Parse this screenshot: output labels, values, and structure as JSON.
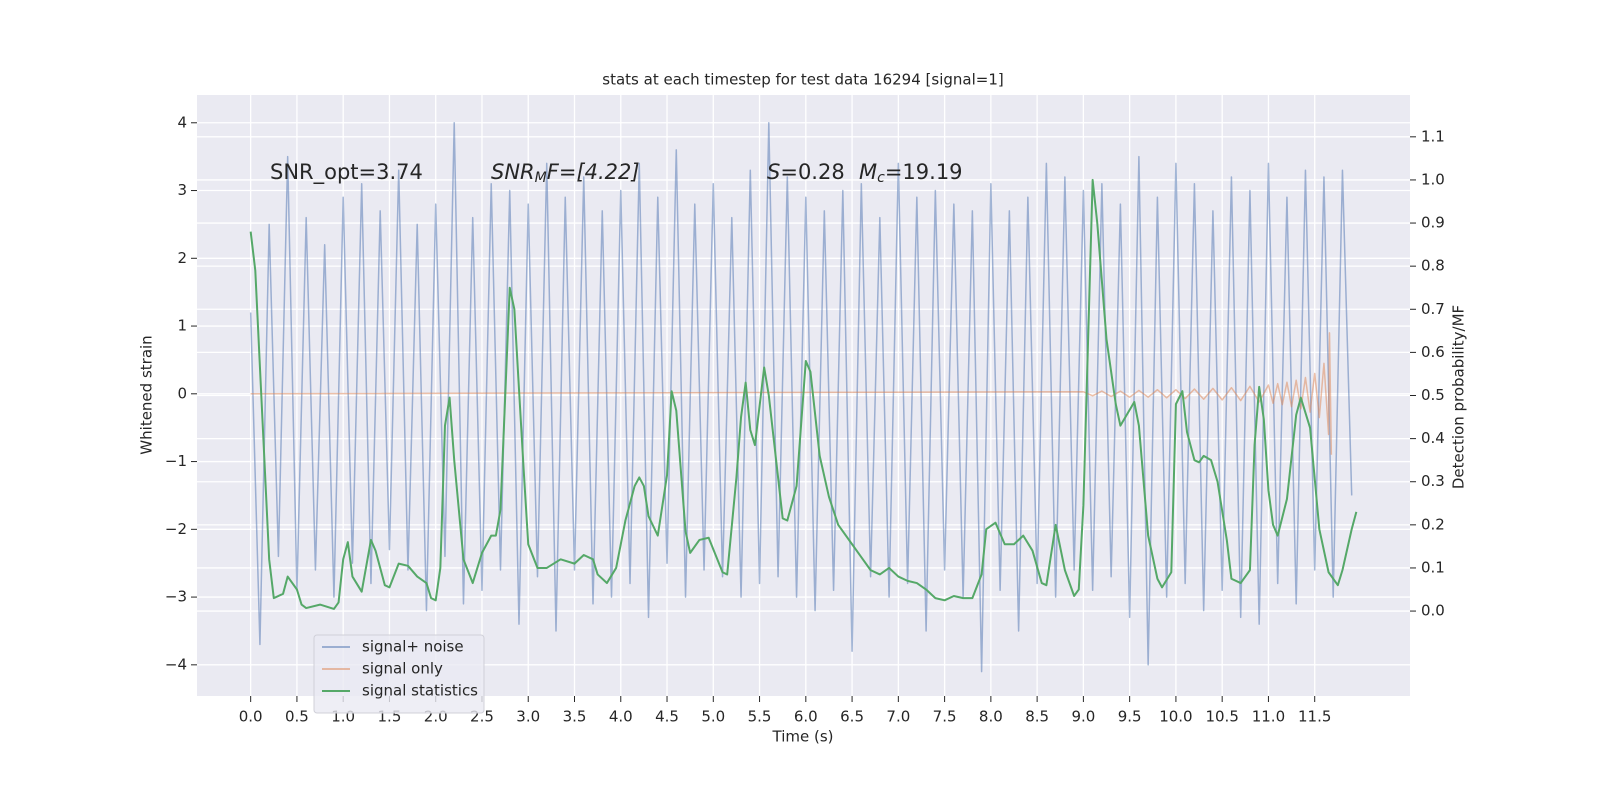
{
  "chart_data": {
    "type": "line",
    "title": "stats at each timestep for test data 16294 [signal=1]",
    "xlabel": "Time (s)",
    "ylabel": "Whitened strain",
    "y2label": "Detection probability/MF",
    "annotations": [
      {
        "base": "SNR_opt=3.74"
      },
      {
        "base": "SNR",
        "sub": "M",
        "rest": "F=[4.22]"
      },
      {
        "base": "S",
        "rest": "=0.28"
      },
      {
        "base": "M",
        "sub": "c",
        "rest": "=19.19"
      }
    ],
    "xlim": [
      -0.58,
      12.53
    ],
    "ylim": [
      -4.46,
      4.41
    ],
    "y2lim": [
      -0.197,
      1.197
    ],
    "xticks": [
      {
        "value": 0,
        "label": "0.0"
      },
      {
        "value": 0.5,
        "label": "0.5"
      },
      {
        "value": 1,
        "label": "1.0"
      },
      {
        "value": 1.5,
        "label": "1.5"
      },
      {
        "value": 2,
        "label": "2.0"
      },
      {
        "value": 2.5,
        "label": "2.5"
      },
      {
        "value": 3,
        "label": "3.0"
      },
      {
        "value": 3.5,
        "label": "3.5"
      },
      {
        "value": 4,
        "label": "4.0"
      },
      {
        "value": 4.5,
        "label": "4.5"
      },
      {
        "value": 5,
        "label": "5.0"
      },
      {
        "value": 5.5,
        "label": "5.5"
      },
      {
        "value": 6,
        "label": "6.0"
      },
      {
        "value": 6.5,
        "label": "6.5"
      },
      {
        "value": 7,
        "label": "7.0"
      },
      {
        "value": 7.5,
        "label": "7.5"
      },
      {
        "value": 8,
        "label": "8.0"
      },
      {
        "value": 8.5,
        "label": "8.5"
      },
      {
        "value": 9,
        "label": "9.0"
      },
      {
        "value": 9.5,
        "label": "9.5"
      },
      {
        "value": 10,
        "label": "10.0"
      },
      {
        "value": 10.5,
        "label": "10.5"
      },
      {
        "value": 11,
        "label": "11.0"
      },
      {
        "value": 11.5,
        "label": "11.5"
      }
    ],
    "yticks": [
      {
        "value": -4,
        "label": "−4"
      },
      {
        "value": -3,
        "label": "−3"
      },
      {
        "value": -2,
        "label": "−2"
      },
      {
        "value": -1,
        "label": "−1"
      },
      0,
      1,
      2,
      3,
      4
    ],
    "y2ticks": [
      {
        "value": 0,
        "label": "0.0"
      },
      {
        "value": 0.1,
        "label": "0.1"
      },
      {
        "value": 0.2,
        "label": "0.2"
      },
      {
        "value": 0.3,
        "label": "0.3"
      },
      {
        "value": 0.4,
        "label": "0.4"
      },
      {
        "value": 0.5,
        "label": "0.5"
      },
      {
        "value": 0.6,
        "label": "0.6"
      },
      {
        "value": 0.7,
        "label": "0.7"
      },
      {
        "value": 0.8,
        "label": "0.8"
      },
      {
        "value": 0.9,
        "label": "0.9"
      },
      {
        "value": 1,
        "label": "1.0"
      },
      {
        "value": 1.1,
        "label": "1.1"
      }
    ],
    "grid": true,
    "legend": "lower left",
    "series": [
      {
        "name": "signal+ noise",
        "color": "#4c72b0",
        "alpha": 0.5,
        "x": [
          0,
          0.1,
          0.2,
          0.3,
          0.4,
          0.5,
          0.6,
          0.7,
          0.8,
          0.9,
          1,
          1.1,
          1.2,
          1.3,
          1.4,
          1.5,
          1.6,
          1.7,
          1.8,
          1.9,
          2,
          2.1,
          2.2,
          2.3,
          2.4,
          2.5,
          2.6,
          2.7,
          2.8,
          2.9,
          3,
          3.1,
          3.2,
          3.3,
          3.4,
          3.5,
          3.6,
          3.7,
          3.8,
          3.9,
          4,
          4.1,
          4.2,
          4.3,
          4.4,
          4.5,
          4.6,
          4.7,
          4.8,
          4.9,
          5,
          5.1,
          5.2,
          5.3,
          5.4,
          5.5,
          5.6,
          5.7,
          5.8,
          5.9,
          6,
          6.1,
          6.2,
          6.3,
          6.4,
          6.5,
          6.6,
          6.7,
          6.8,
          6.9,
          7,
          7.1,
          7.2,
          7.3,
          7.4,
          7.5,
          7.6,
          7.7,
          7.8,
          7.9,
          8,
          8.1,
          8.2,
          8.3,
          8.4,
          8.5,
          8.6,
          8.7,
          8.8,
          8.9,
          9,
          9.1,
          9.2,
          9.3,
          9.4,
          9.5,
          9.6,
          9.7,
          9.8,
          9.9,
          10,
          10.1,
          10.2,
          10.3,
          10.4,
          10.5,
          10.6,
          10.7,
          10.8,
          10.9,
          11,
          11.1,
          11.2,
          11.3,
          11.4,
          11.5,
          11.6,
          11.7,
          11.8,
          11.9
        ],
        "values": [
          1.2,
          -3.7,
          2.5,
          -2.4,
          3.5,
          -2.9,
          2.6,
          -2.6,
          2.2,
          -3.0,
          2.9,
          -2.5,
          3.1,
          -2.8,
          2.7,
          -2.3,
          3.3,
          -2.6,
          2.5,
          -3.2,
          2.8,
          -2.4,
          4.0,
          -3.1,
          2.6,
          -2.9,
          3.1,
          -2.6,
          3.0,
          -3.4,
          2.8,
          -2.7,
          3.4,
          -3.5,
          2.9,
          -2.6,
          3.2,
          -3.1,
          2.7,
          -3.0,
          3.0,
          -2.8,
          3.4,
          -3.3,
          2.9,
          -2.5,
          3.6,
          -3.0,
          2.8,
          -2.6,
          3.1,
          -2.7,
          2.6,
          -3.0,
          3.3,
          -2.8,
          4.0,
          -2.7,
          3.2,
          -3.0,
          2.9,
          -3.2,
          2.7,
          -2.9,
          3.0,
          -3.8,
          3.1,
          -2.7,
          2.6,
          -3.0,
          3.4,
          -2.8,
          2.9,
          -3.5,
          3.0,
          -2.6,
          2.8,
          -3.0,
          2.7,
          -4.1,
          3.1,
          -2.9,
          2.7,
          -3.5,
          2.9,
          -2.8,
          3.4,
          -3.0,
          3.2,
          -2.6,
          3.0,
          -2.9,
          3.1,
          -2.7,
          2.8,
          -3.3,
          3.5,
          -4.0,
          2.9,
          -3.0,
          3.4,
          -2.8,
          3.1,
          -3.2,
          2.7,
          -2.9,
          3.2,
          -3.3,
          3.0,
          -3.4,
          3.4,
          -2.8,
          2.9,
          -3.1,
          3.3,
          -2.6,
          3.2,
          -3.0,
          3.3,
          -1.5
        ]
      },
      {
        "name": "signal only",
        "color": "#dd8452",
        "alpha": 0.5,
        "x": [
          0,
          9.0,
          9.1,
          9.2,
          9.3,
          9.4,
          9.5,
          9.6,
          9.7,
          9.8,
          9.9,
          10.0,
          10.1,
          10.2,
          10.3,
          10.4,
          10.5,
          10.6,
          10.7,
          10.8,
          10.9,
          11.0,
          11.05,
          11.1,
          11.15,
          11.2,
          11.25,
          11.3,
          11.35,
          11.4,
          11.45,
          11.5,
          11.55,
          11.6,
          11.65,
          11.66,
          11.68
        ],
        "values": [
          0,
          0.03,
          -0.03,
          0.04,
          -0.04,
          0.04,
          -0.05,
          0.05,
          -0.05,
          0.06,
          -0.06,
          0.06,
          -0.07,
          0.07,
          -0.08,
          0.08,
          -0.09,
          0.09,
          -0.1,
          0.11,
          -0.12,
          0.13,
          -0.14,
          0.15,
          -0.16,
          0.17,
          -0.19,
          0.2,
          -0.22,
          0.24,
          -0.27,
          0.3,
          -0.35,
          0.45,
          -0.6,
          0.9,
          -0.9
        ]
      },
      {
        "name": "signal statistics",
        "color": "#55a868",
        "alpha": 1,
        "axis": "y2",
        "x": [
          0,
          0.05,
          0.2,
          0.25,
          0.35,
          0.4,
          0.5,
          0.55,
          0.6,
          0.75,
          0.9,
          0.95,
          1.0,
          1.05,
          1.1,
          1.2,
          1.3,
          1.35,
          1.45,
          1.5,
          1.6,
          1.7,
          1.8,
          1.9,
          1.95,
          2.0,
          2.05,
          2.1,
          2.15,
          2.2,
          2.3,
          2.4,
          2.5,
          2.6,
          2.65,
          2.7,
          2.8,
          2.85,
          2.95,
          3.0,
          3.1,
          3.2,
          3.35,
          3.5,
          3.6,
          3.7,
          3.75,
          3.85,
          3.95,
          4.05,
          4.15,
          4.2,
          4.25,
          4.3,
          4.4,
          4.5,
          4.55,
          4.6,
          4.7,
          4.75,
          4.85,
          4.95,
          5.1,
          5.15,
          5.25,
          5.3,
          5.35,
          5.4,
          5.45,
          5.55,
          5.6,
          5.7,
          5.75,
          5.8,
          5.9,
          6.0,
          6.05,
          6.15,
          6.25,
          6.35,
          6.5,
          6.6,
          6.7,
          6.8,
          6.9,
          7.0,
          7.1,
          7.2,
          7.3,
          7.4,
          7.5,
          7.6,
          7.7,
          7.8,
          7.9,
          7.95,
          8.05,
          8.15,
          8.25,
          8.35,
          8.45,
          8.55,
          8.6,
          8.7,
          8.8,
          8.9,
          8.95,
          9.0,
          9.1,
          9.15,
          9.25,
          9.35,
          9.4,
          9.55,
          9.6,
          9.7,
          9.8,
          9.85,
          9.95,
          10.0,
          10.07,
          10.12,
          10.2,
          10.25,
          10.3,
          10.38,
          10.45,
          10.55,
          10.6,
          10.7,
          10.8,
          10.85,
          10.9,
          10.95,
          11.0,
          11.05,
          11.1,
          11.2,
          11.3,
          11.35,
          11.45,
          11.55,
          11.65,
          11.75,
          11.8,
          11.9,
          11.95
        ],
        "values": [
          0.88,
          0.79,
          0.12,
          0.03,
          0.04,
          0.08,
          0.05,
          0.015,
          0.007,
          0.015,
          0.005,
          0.02,
          0.12,
          0.16,
          0.08,
          0.045,
          0.165,
          0.14,
          0.06,
          0.055,
          0.11,
          0.105,
          0.08,
          0.065,
          0.03,
          0.025,
          0.1,
          0.43,
          0.495,
          0.35,
          0.12,
          0.065,
          0.135,
          0.175,
          0.175,
          0.235,
          0.75,
          0.7,
          0.33,
          0.155,
          0.1,
          0.1,
          0.12,
          0.11,
          0.13,
          0.12,
          0.085,
          0.065,
          0.1,
          0.21,
          0.29,
          0.31,
          0.29,
          0.22,
          0.175,
          0.315,
          0.51,
          0.465,
          0.185,
          0.135,
          0.165,
          0.17,
          0.09,
          0.085,
          0.31,
          0.45,
          0.53,
          0.42,
          0.385,
          0.565,
          0.5,
          0.31,
          0.215,
          0.21,
          0.29,
          0.58,
          0.555,
          0.36,
          0.265,
          0.2,
          0.155,
          0.125,
          0.095,
          0.085,
          0.1,
          0.08,
          0.07,
          0.065,
          0.05,
          0.03,
          0.025,
          0.035,
          0.03,
          0.03,
          0.085,
          0.19,
          0.205,
          0.155,
          0.155,
          0.175,
          0.14,
          0.065,
          0.06,
          0.2,
          0.095,
          0.035,
          0.05,
          0.245,
          1.0,
          0.9,
          0.63,
          0.48,
          0.43,
          0.485,
          0.43,
          0.175,
          0.075,
          0.055,
          0.09,
          0.48,
          0.51,
          0.415,
          0.35,
          0.345,
          0.36,
          0.35,
          0.3,
          0.165,
          0.075,
          0.065,
          0.095,
          0.385,
          0.52,
          0.445,
          0.28,
          0.2,
          0.175,
          0.26,
          0.455,
          0.495,
          0.425,
          0.19,
          0.09,
          0.06,
          0.095,
          0.19,
          0.23
        ]
      }
    ]
  }
}
